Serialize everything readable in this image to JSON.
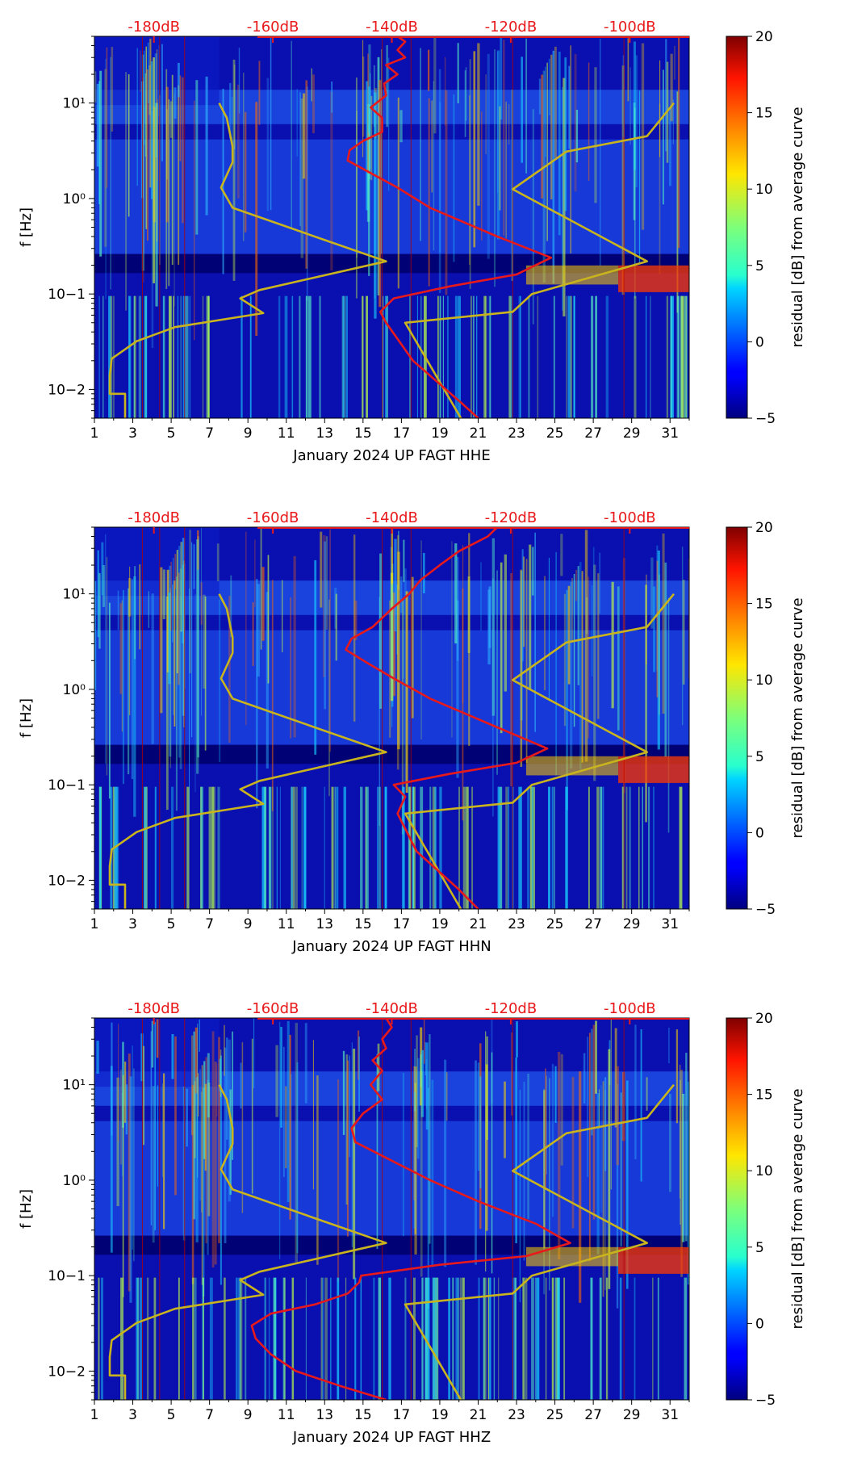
{
  "chart_data": [
    {
      "type": "heatmap",
      "xlabel": "January 2024 UP FAGT  HHE",
      "ylabel": "f [Hz]",
      "x_ticks": [
        "1",
        "3",
        "5",
        "7",
        "9",
        "11",
        "13",
        "15",
        "17",
        "19",
        "21",
        "23",
        "25",
        "27",
        "29",
        "31"
      ],
      "y_ticks": [
        "10−2",
        "10−1",
        "10⁰",
        "10¹"
      ],
      "db_ticks": [
        "-180dB",
        "-160dB",
        "-140dB",
        "-120dB",
        "-100dB"
      ],
      "colorbar": {
        "label": "residual [dB] from average curve",
        "ticks": [
          "−5",
          "0",
          "5",
          "10",
          "15",
          "20"
        ],
        "range": [
          -5,
          20
        ]
      },
      "xlim": [
        1,
        32
      ],
      "ylim_hz": [
        0.005,
        50
      ],
      "db_range": [
        -190,
        -90
      ],
      "series": [
        {
          "color": "#c9b41e",
          "points": [
            [
              2.6,
              0.005
            ],
            [
              2.6,
              0.009
            ],
            [
              1.8,
              0.009
            ],
            [
              1.8,
              0.014
            ],
            [
              1.9,
              0.021
            ],
            [
              3.2,
              0.032
            ],
            [
              5.2,
              0.045
            ],
            [
              9.8,
              0.063
            ],
            [
              8.6,
              0.09
            ],
            [
              9.6,
              0.11
            ],
            [
              16.2,
              0.22
            ],
            [
              12.8,
              0.38
            ],
            [
              8.2,
              0.8
            ],
            [
              7.6,
              1.3
            ],
            [
              8.2,
              2.4
            ],
            [
              8.2,
              3.5
            ],
            [
              7.9,
              7
            ],
            [
              7.5,
              10
            ]
          ]
        },
        {
          "color": "#c9b41e",
          "points": [
            [
              20.1,
              0.005
            ],
            [
              17.2,
              0.05
            ],
            [
              22.8,
              0.065
            ],
            [
              23.8,
              0.1
            ],
            [
              29.8,
              0.22
            ],
            [
              22.8,
              1.25
            ],
            [
              25.6,
              3.1
            ],
            [
              29.8,
              4.5
            ],
            [
              31.2,
              10
            ]
          ]
        },
        {
          "color": "#e8191b",
          "points": [
            [
              21,
              0.005
            ],
            [
              20.2,
              0.007
            ],
            [
              17.6,
              0.02
            ],
            [
              16.2,
              0.05
            ],
            [
              15.9,
              0.065
            ],
            [
              16.6,
              0.09
            ],
            [
              19.5,
              0.12
            ],
            [
              23,
              0.16
            ],
            [
              24.8,
              0.24
            ],
            [
              22,
              0.4
            ],
            [
              18.5,
              0.8
            ],
            [
              16.8,
              1.3
            ],
            [
              15.5,
              1.8
            ],
            [
              14.2,
              2.5
            ],
            [
              14.3,
              3.2
            ],
            [
              15,
              4
            ],
            [
              16,
              5
            ],
            [
              16,
              7
            ],
            [
              15.4,
              9
            ],
            [
              16.2,
              12
            ],
            [
              16.1,
              16
            ],
            [
              16.8,
              20
            ],
            [
              16.2,
              25
            ],
            [
              17.2,
              30
            ],
            [
              16.8,
              36
            ],
            [
              17.2,
              44
            ],
            [
              16.8,
              50
            ]
          ]
        }
      ]
    },
    {
      "type": "heatmap",
      "xlabel": "January 2024 UP FAGT  HHN",
      "ylabel": "f [Hz]",
      "x_ticks": [
        "1",
        "3",
        "5",
        "7",
        "9",
        "11",
        "13",
        "15",
        "17",
        "19",
        "21",
        "23",
        "25",
        "27",
        "29",
        "31"
      ],
      "y_ticks": [
        "10−2",
        "10−1",
        "10⁰",
        "10¹"
      ],
      "db_ticks": [
        "-180dB",
        "-160dB",
        "-140dB",
        "-120dB",
        "-100dB"
      ],
      "colorbar": {
        "label": "residual [dB] from average curve",
        "ticks": [
          "−5",
          "0",
          "5",
          "10",
          "15",
          "20"
        ],
        "range": [
          -5,
          20
        ]
      },
      "xlim": [
        1,
        32
      ],
      "ylim_hz": [
        0.005,
        50
      ],
      "db_range": [
        -190,
        -90
      ],
      "series": [
        {
          "color": "#c9b41e",
          "points": [
            [
              2.6,
              0.005
            ],
            [
              2.6,
              0.009
            ],
            [
              1.8,
              0.009
            ],
            [
              1.8,
              0.014
            ],
            [
              1.9,
              0.021
            ],
            [
              3.2,
              0.032
            ],
            [
              5.2,
              0.045
            ],
            [
              9.8,
              0.063
            ],
            [
              8.6,
              0.09
            ],
            [
              9.6,
              0.11
            ],
            [
              16.2,
              0.22
            ],
            [
              12.8,
              0.38
            ],
            [
              8.2,
              0.8
            ],
            [
              7.6,
              1.3
            ],
            [
              8.2,
              2.4
            ],
            [
              8.2,
              3.5
            ],
            [
              7.9,
              7
            ],
            [
              7.5,
              10
            ]
          ]
        },
        {
          "color": "#c9b41e",
          "points": [
            [
              20.1,
              0.005
            ],
            [
              17.2,
              0.05
            ],
            [
              22.8,
              0.065
            ],
            [
              23.8,
              0.1
            ],
            [
              29.8,
              0.22
            ],
            [
              22.8,
              1.25
            ],
            [
              25.6,
              3.1
            ],
            [
              29.8,
              4.5
            ],
            [
              31.2,
              10
            ]
          ]
        },
        {
          "color": "#e8191b",
          "points": [
            [
              21,
              0.005
            ],
            [
              20,
              0.008
            ],
            [
              17.8,
              0.02
            ],
            [
              16.8,
              0.05
            ],
            [
              17.2,
              0.075
            ],
            [
              16.6,
              0.1
            ],
            [
              19.5,
              0.13
            ],
            [
              23,
              0.17
            ],
            [
              24.6,
              0.24
            ],
            [
              22,
              0.4
            ],
            [
              18.5,
              0.8
            ],
            [
              16.6,
              1.3
            ],
            [
              15.2,
              1.9
            ],
            [
              14.1,
              2.6
            ],
            [
              14.4,
              3.4
            ],
            [
              15.5,
              4.5
            ],
            [
              16.5,
              7
            ],
            [
              17.4,
              10
            ],
            [
              18,
              14
            ],
            [
              19,
              20
            ],
            [
              20,
              28
            ],
            [
              21.5,
              40
            ],
            [
              22,
              50
            ]
          ]
        }
      ]
    },
    {
      "type": "heatmap",
      "xlabel": "January 2024 UP FAGT  HHZ",
      "ylabel": "f [Hz]",
      "x_ticks": [
        "1",
        "3",
        "5",
        "7",
        "9",
        "11",
        "13",
        "15",
        "17",
        "19",
        "21",
        "23",
        "25",
        "27",
        "29",
        "31"
      ],
      "y_ticks": [
        "10−2",
        "10−1",
        "10⁰",
        "10¹"
      ],
      "db_ticks": [
        "-180dB",
        "-160dB",
        "-140dB",
        "-120dB",
        "-100dB"
      ],
      "colorbar": {
        "label": "residual [dB] from average curve",
        "ticks": [
          "−5",
          "0",
          "5",
          "10",
          "15",
          "20"
        ],
        "range": [
          -5,
          20
        ]
      },
      "xlim": [
        1,
        32
      ],
      "ylim_hz": [
        0.005,
        50
      ],
      "db_range": [
        -190,
        -90
      ],
      "series": [
        {
          "color": "#c9b41e",
          "points": [
            [
              2.6,
              0.005
            ],
            [
              2.6,
              0.009
            ],
            [
              1.8,
              0.009
            ],
            [
              1.8,
              0.014
            ],
            [
              1.9,
              0.021
            ],
            [
              3.2,
              0.032
            ],
            [
              5.2,
              0.045
            ],
            [
              9.8,
              0.063
            ],
            [
              8.6,
              0.09
            ],
            [
              9.6,
              0.11
            ],
            [
              16.2,
              0.22
            ],
            [
              12.8,
              0.38
            ],
            [
              8.2,
              0.8
            ],
            [
              7.6,
              1.3
            ],
            [
              8.2,
              2.4
            ],
            [
              8.2,
              3.5
            ],
            [
              7.9,
              7
            ],
            [
              7.5,
              10
            ]
          ]
        },
        {
          "color": "#c9b41e",
          "points": [
            [
              20.1,
              0.005
            ],
            [
              17.2,
              0.05
            ],
            [
              22.8,
              0.065
            ],
            [
              23.8,
              0.1
            ],
            [
              29.8,
              0.22
            ],
            [
              22.8,
              1.25
            ],
            [
              25.6,
              3.1
            ],
            [
              29.8,
              4.5
            ],
            [
              31.2,
              10
            ]
          ]
        },
        {
          "color": "#e8191b",
          "points": [
            [
              16.2,
              0.005
            ],
            [
              13.8,
              0.007
            ],
            [
              11.5,
              0.01
            ],
            [
              10.2,
              0.015
            ],
            [
              9.4,
              0.022
            ],
            [
              9.2,
              0.03
            ],
            [
              10.2,
              0.04
            ],
            [
              12.5,
              0.05
            ],
            [
              14.2,
              0.065
            ],
            [
              14.8,
              0.085
            ],
            [
              14.9,
              0.1
            ],
            [
              19,
              0.13
            ],
            [
              23.5,
              0.16
            ],
            [
              25.8,
              0.22
            ],
            [
              24,
              0.35
            ],
            [
              21,
              0.6
            ],
            [
              18.5,
              1
            ],
            [
              16.5,
              1.6
            ],
            [
              14.6,
              2.5
            ],
            [
              14.4,
              3.5
            ],
            [
              15,
              5
            ],
            [
              16,
              7
            ],
            [
              15.4,
              10
            ],
            [
              16,
              14
            ],
            [
              15.5,
              18
            ],
            [
              16.2,
              24
            ],
            [
              16,
              30
            ],
            [
              16.5,
              40
            ],
            [
              16.2,
              50
            ]
          ]
        }
      ]
    }
  ]
}
